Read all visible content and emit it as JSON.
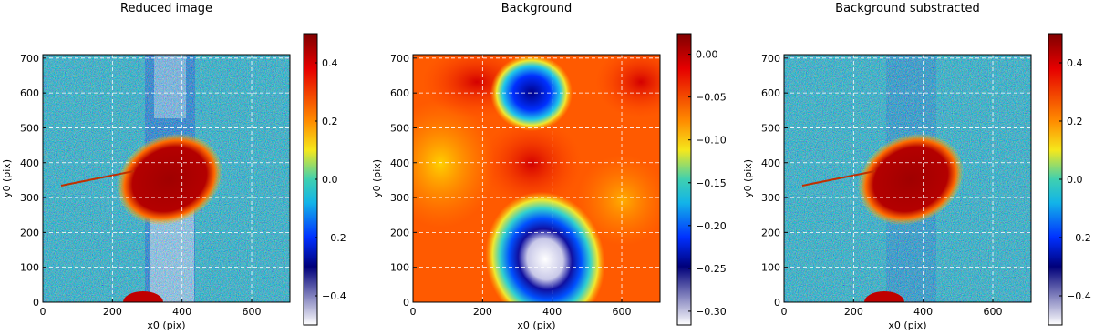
{
  "chart_data": [
    {
      "type": "heatmap",
      "title": "Reduced image",
      "xlabel": "x0 (pix)",
      "ylabel": "y0 (pix)",
      "xlim": [
        0,
        710
      ],
      "ylim": [
        0,
        710
      ],
      "xticks": [
        0,
        200,
        400,
        600
      ],
      "yticks": [
        0,
        100,
        200,
        300,
        400,
        500,
        600,
        700
      ],
      "grid": true,
      "colorbar": {
        "lim": [
          -0.5,
          0.5
        ],
        "ticks": [
          {
            "value": -0.4,
            "label": "−0.4"
          },
          {
            "value": -0.2,
            "label": "−0.2"
          },
          {
            "value": 0,
            "label": "0.0"
          },
          0.2,
          0.4
        ]
      }
    },
    {
      "type": "heatmap",
      "title": "Background",
      "xlabel": "x0 (pix)",
      "ylabel": "y0 (pix)",
      "xlim": [
        0,
        710
      ],
      "ylim": [
        0,
        710
      ],
      "xticks": [
        0,
        200,
        400,
        600
      ],
      "yticks": [
        0,
        100,
        200,
        300,
        400,
        500,
        600,
        700
      ],
      "grid": true,
      "colorbar": {
        "lim": [
          -0.316,
          0.024
        ],
        "ticks": [
          {
            "value": -0.3,
            "label": "−0.30"
          },
          {
            "value": -0.25,
            "label": "−0.25"
          },
          {
            "value": -0.2,
            "label": "−0.20"
          },
          {
            "value": -0.15,
            "label": "−0.15"
          },
          {
            "value": -0.1,
            "label": "−0.10"
          },
          {
            "value": -0.05,
            "label": "−0.05"
          },
          {
            "value": 0,
            "label": "0.00"
          }
        ]
      }
    },
    {
      "type": "heatmap",
      "title": "Background substracted",
      "xlabel": "x0 (pix)",
      "ylabel": "y0 (pix)",
      "xlim": [
        0,
        710
      ],
      "ylim": [
        0,
        710
      ],
      "xticks": [
        0,
        200,
        400,
        600
      ],
      "yticks": [
        0,
        100,
        200,
        300,
        400,
        500,
        600,
        700
      ],
      "grid": true,
      "colorbar": {
        "lim": [
          -0.5,
          0.5
        ],
        "ticks": [
          {
            "value": -0.4,
            "label": "−0.4"
          },
          {
            "value": -0.2,
            "label": "−0.2"
          },
          {
            "value": 0,
            "label": "0.0"
          },
          0.2,
          0.4
        ]
      }
    }
  ]
}
